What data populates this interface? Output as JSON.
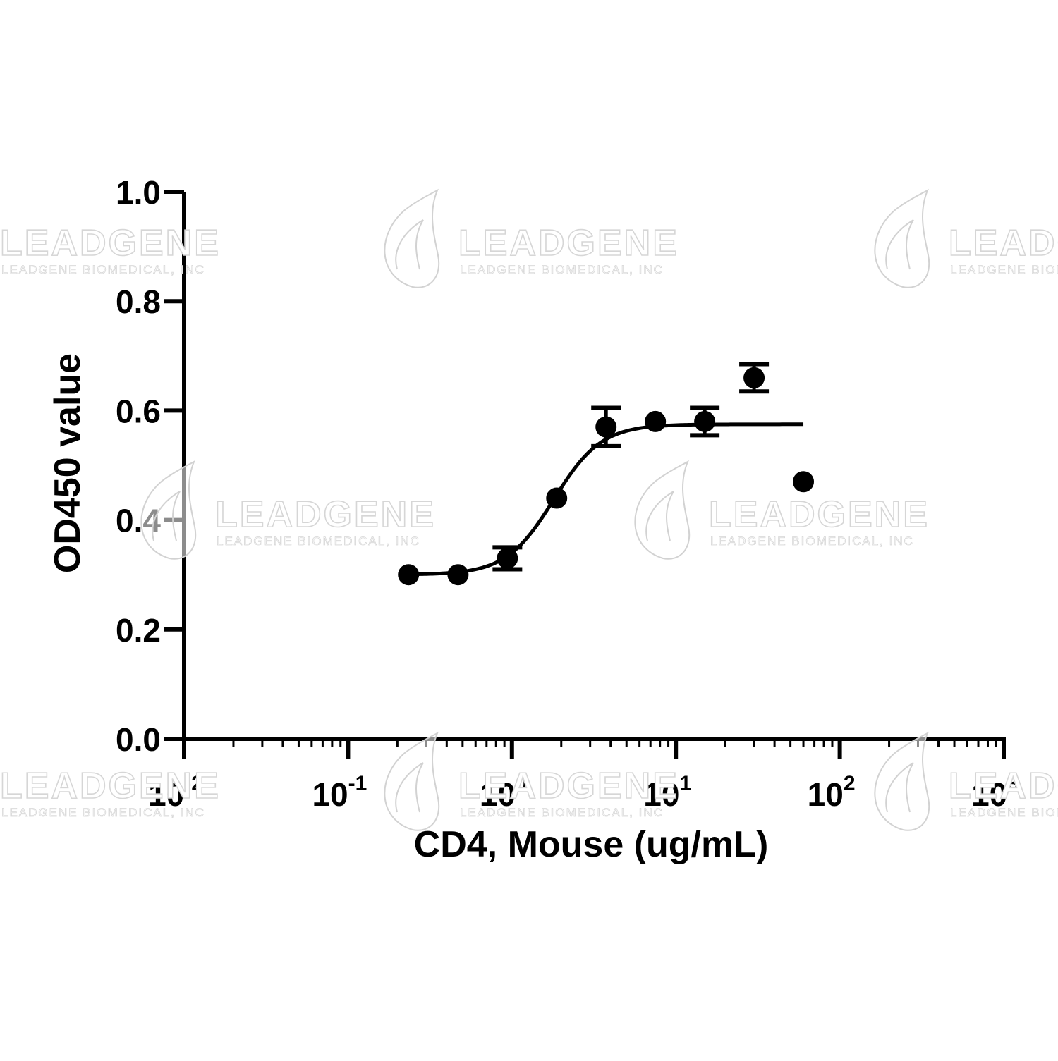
{
  "chart_data": {
    "type": "scatter",
    "xlabel": "CD4, Mouse (ug/mL)",
    "ylabel": "OD450 value",
    "x_scale": "log",
    "xlim": [
      0.01,
      1000
    ],
    "ylim": [
      0.0,
      1.0
    ],
    "grid": false,
    "yticks": [
      "0.0",
      "0.2",
      "0.4",
      "0.6",
      "0.8",
      "1.0"
    ],
    "ytick_values": [
      0.0,
      0.2,
      0.4,
      0.6,
      0.8,
      1.0
    ],
    "xticks": [
      {
        "base": "10",
        "exp": "-2"
      },
      {
        "base": "10",
        "exp": "-1"
      },
      {
        "base": "10",
        "exp": "0"
      },
      {
        "base": "10",
        "exp": "1"
      },
      {
        "base": "10",
        "exp": "2"
      },
      {
        "base": "10",
        "exp": "3"
      }
    ],
    "xtick_values": [
      0.01,
      0.1,
      1,
      10,
      100,
      1000
    ],
    "points": [
      {
        "x": 0.234,
        "y": 0.3,
        "err": 0.0
      },
      {
        "x": 0.469,
        "y": 0.3,
        "err": 0.0
      },
      {
        "x": 0.938,
        "y": 0.33,
        "err": 0.02
      },
      {
        "x": 1.875,
        "y": 0.44,
        "err": 0.0
      },
      {
        "x": 3.75,
        "y": 0.57,
        "err": 0.035
      },
      {
        "x": 7.5,
        "y": 0.58,
        "err": 0.0
      },
      {
        "x": 15.0,
        "y": 0.58,
        "err": 0.025
      },
      {
        "x": 30.0,
        "y": 0.66,
        "err": 0.025
      },
      {
        "x": 60.0,
        "y": 0.47,
        "err": 0.0
      }
    ],
    "fit_curve": {
      "model": "sigmoid",
      "bottom": 0.3,
      "top": 0.575,
      "ec50": 1.8,
      "hill": 3.0,
      "x_range": [
        0.234,
        60.0
      ]
    }
  },
  "watermark": {
    "logo_icon": "leaf-drop-icon",
    "word": "LEADGENE",
    "subtitle": "LEADGENE BIOMEDICAL, INC"
  }
}
